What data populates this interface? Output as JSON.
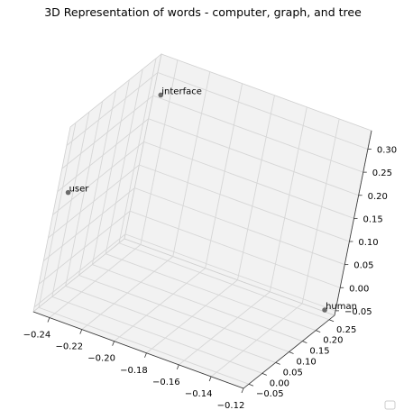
{
  "chart_data": {
    "type": "scatter",
    "projection": "3d",
    "title": "3D Representation of words - computer, graph, and tree",
    "xlabel": "",
    "ylabel": "",
    "zlabel": "",
    "grid": true,
    "xlim": [
      -0.25,
      -0.12
    ],
    "ylim": [
      -0.07,
      0.27
    ],
    "zlim": [
      -0.06,
      0.34
    ],
    "x_ticks": [
      -0.24,
      -0.22,
      -0.2,
      -0.18,
      -0.16,
      -0.14,
      -0.12
    ],
    "x_tick_labels": [
      "−0.24",
      "−0.22",
      "−0.20",
      "−0.18",
      "−0.16",
      "−0.14",
      "−0.12"
    ],
    "y_ticks": [
      -0.05,
      0.0,
      0.05,
      0.1,
      0.15,
      0.2,
      0.25
    ],
    "y_tick_labels": [
      "−0.05",
      "0.00",
      "0.05",
      "0.10",
      "0.15",
      "0.20",
      "0.25"
    ],
    "z_ticks": [
      -0.05,
      0.0,
      0.05,
      0.1,
      0.15,
      0.2,
      0.25,
      0.3
    ],
    "z_tick_labels": [
      "−0.05",
      "0.00",
      "0.05",
      "0.10",
      "0.15",
      "0.20",
      "0.25",
      "0.30"
    ],
    "points": [
      {
        "label": "interface",
        "x": -0.245,
        "y": 0.265,
        "z": 0.26
      },
      {
        "label": "user",
        "x": -0.245,
        "y": -0.06,
        "z": 0.2
      },
      {
        "label": "human",
        "x": -0.125,
        "y": 0.26,
        "z": -0.05
      }
    ],
    "marker_color": "#6b6b6b",
    "pane_color": "#f2f2f2",
    "grid_color": "#d6d6d6"
  }
}
